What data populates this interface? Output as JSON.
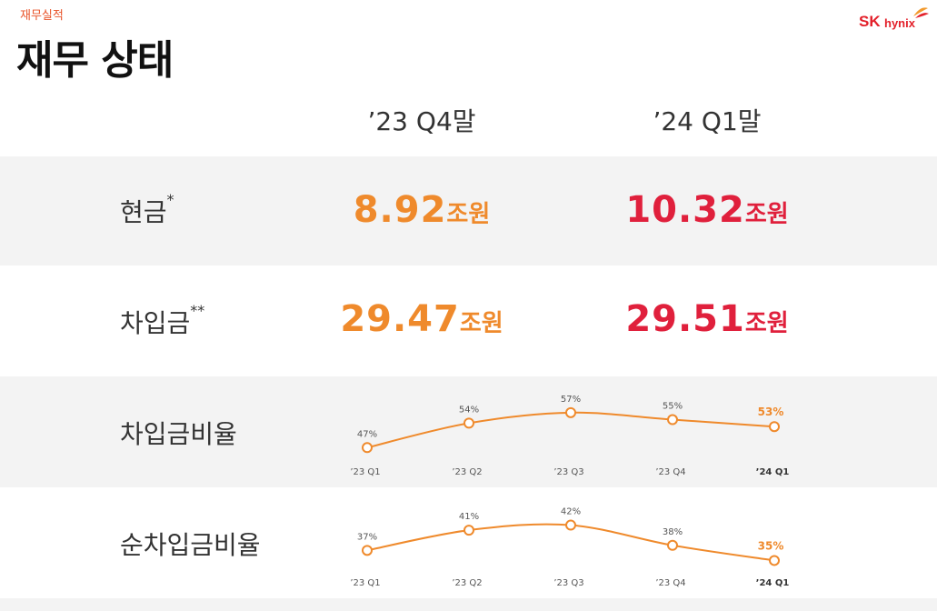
{
  "header": {
    "section_label": "재무실적",
    "title": "재무 상태",
    "logo_sk": "SK",
    "logo_hynix": "hynix"
  },
  "columns": [
    "’23 Q4말",
    "’24 Q1말"
  ],
  "rows": [
    {
      "label": "현금",
      "mark": "*",
      "values": [
        {
          "num": "8.92",
          "unit": "조원"
        },
        {
          "num": "10.32",
          "unit": "조원"
        }
      ]
    },
    {
      "label": "차입금",
      "mark": "**",
      "values": [
        {
          "num": "29.47",
          "unit": "조원"
        },
        {
          "num": "29.51",
          "unit": "조원"
        }
      ]
    },
    {
      "label": "차입금비율",
      "mark": ""
    },
    {
      "label": "순차입금비율",
      "mark": ""
    }
  ],
  "colors": {
    "accent_orange": "#ef8a2c",
    "accent_red": "#e0203c",
    "brand_red": "#e3202a"
  },
  "chart_data": [
    {
      "type": "line",
      "categories": [
        "’23 Q1",
        "’23 Q2",
        "’23 Q3",
        "’23 Q4",
        "’24 Q1"
      ],
      "series": [
        {
          "values": [
            47,
            54,
            57,
            55,
            53
          ],
          "labels": [
            "47%",
            "54%",
            "57%",
            "55%",
            "53%"
          ]
        }
      ],
      "title": "",
      "xlabel": "",
      "ylabel": "",
      "ylim": [
        45,
        58
      ],
      "grid": false
    },
    {
      "type": "line",
      "categories": [
        "’23 Q1",
        "’23 Q2",
        "’23 Q3",
        "’23 Q4",
        "’24 Q1"
      ],
      "series": [
        {
          "values": [
            37,
            41,
            42,
            38,
            35
          ],
          "labels": [
            "37%",
            "41%",
            "42%",
            "38%",
            "35%"
          ]
        }
      ],
      "title": "",
      "xlabel": "",
      "ylabel": "",
      "ylim": [
        34,
        43
      ],
      "grid": false
    }
  ]
}
